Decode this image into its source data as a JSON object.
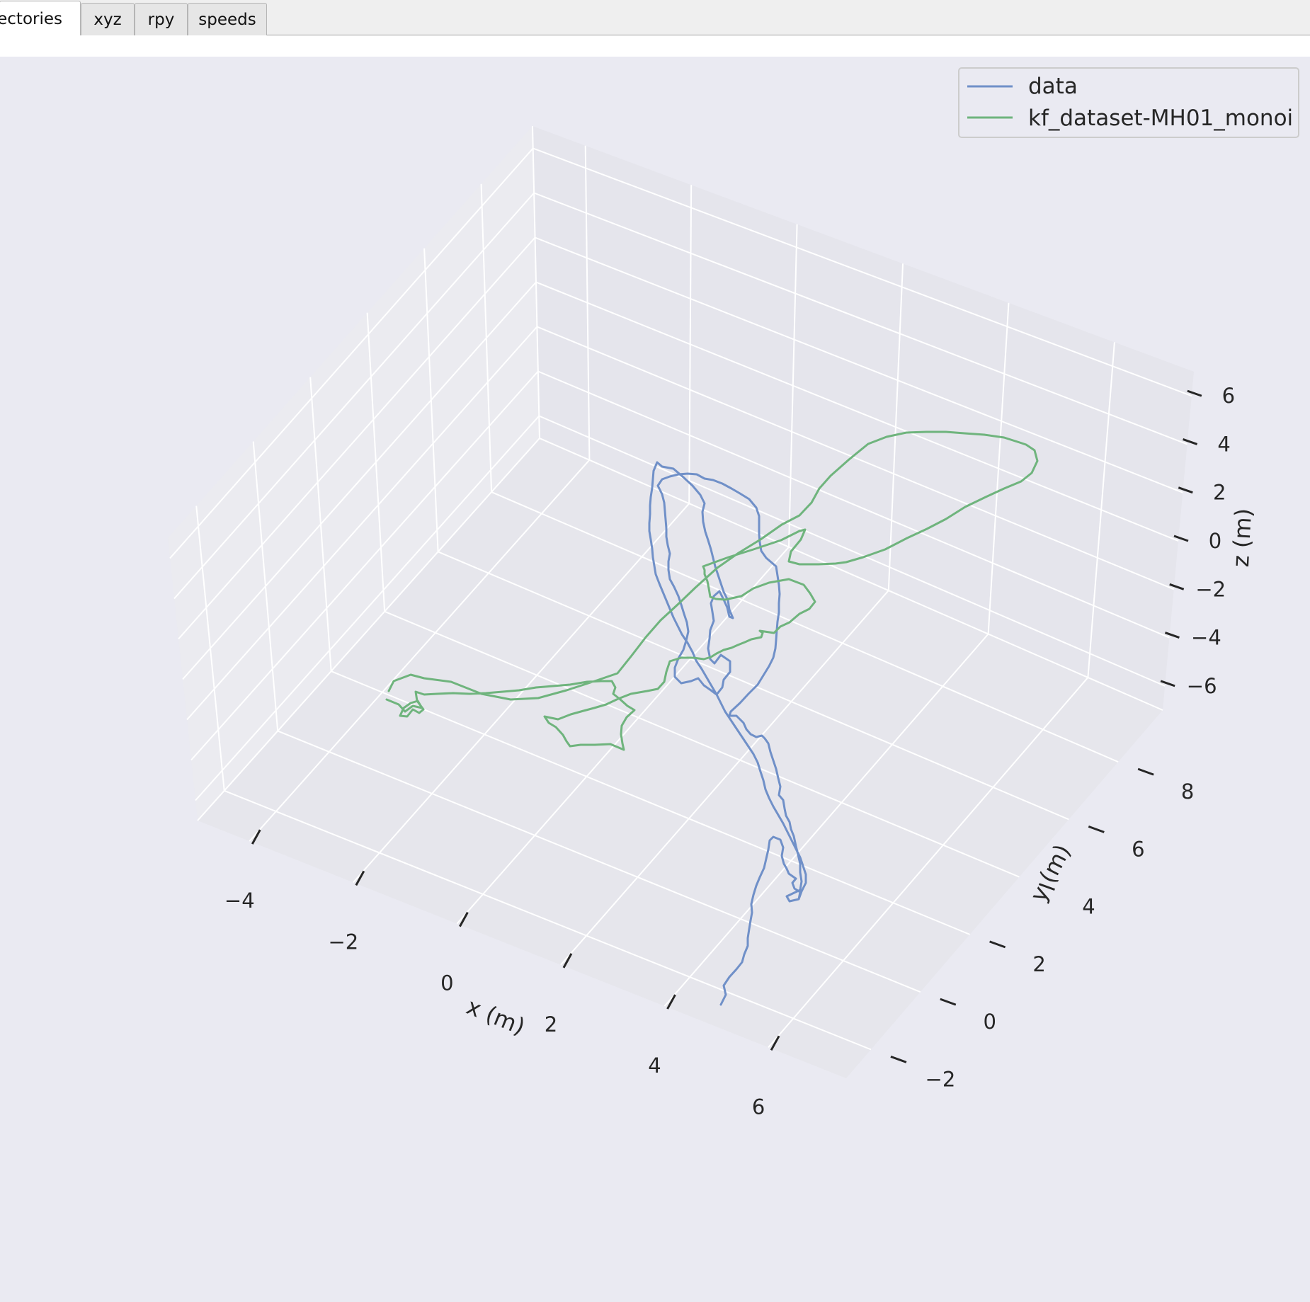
{
  "tabs": [
    {
      "label": "ajectories",
      "active": true
    },
    {
      "label": "xyz",
      "active": false
    },
    {
      "label": "rpy",
      "active": false
    },
    {
      "label": "speeds",
      "active": false
    }
  ],
  "chart_data": {
    "type": "line",
    "projection": "3d",
    "title": "",
    "xlabel": "x (m)",
    "ylabel": "y (m)",
    "zlabel": "z (m)",
    "xlim": [
      -5,
      7.5
    ],
    "ylim": [
      -3,
      9.8
    ],
    "zlim": [
      -7,
      7
    ],
    "x_ticks": [
      "−4",
      "−2",
      "0",
      "2",
      "4",
      "6"
    ],
    "y_ticks": [
      "−2",
      "0",
      "2",
      "4",
      "6",
      "8"
    ],
    "z_ticks": [
      "−6",
      "−4",
      "−2",
      "0",
      "2",
      "4",
      "6"
    ],
    "grid": true,
    "legend_position": "top-right",
    "series": [
      {
        "name": "data",
        "color": "#7090c8"
      },
      {
        "name": "kf_dataset-MH01_monoi",
        "color": "#6fb47d"
      }
    ]
  }
}
